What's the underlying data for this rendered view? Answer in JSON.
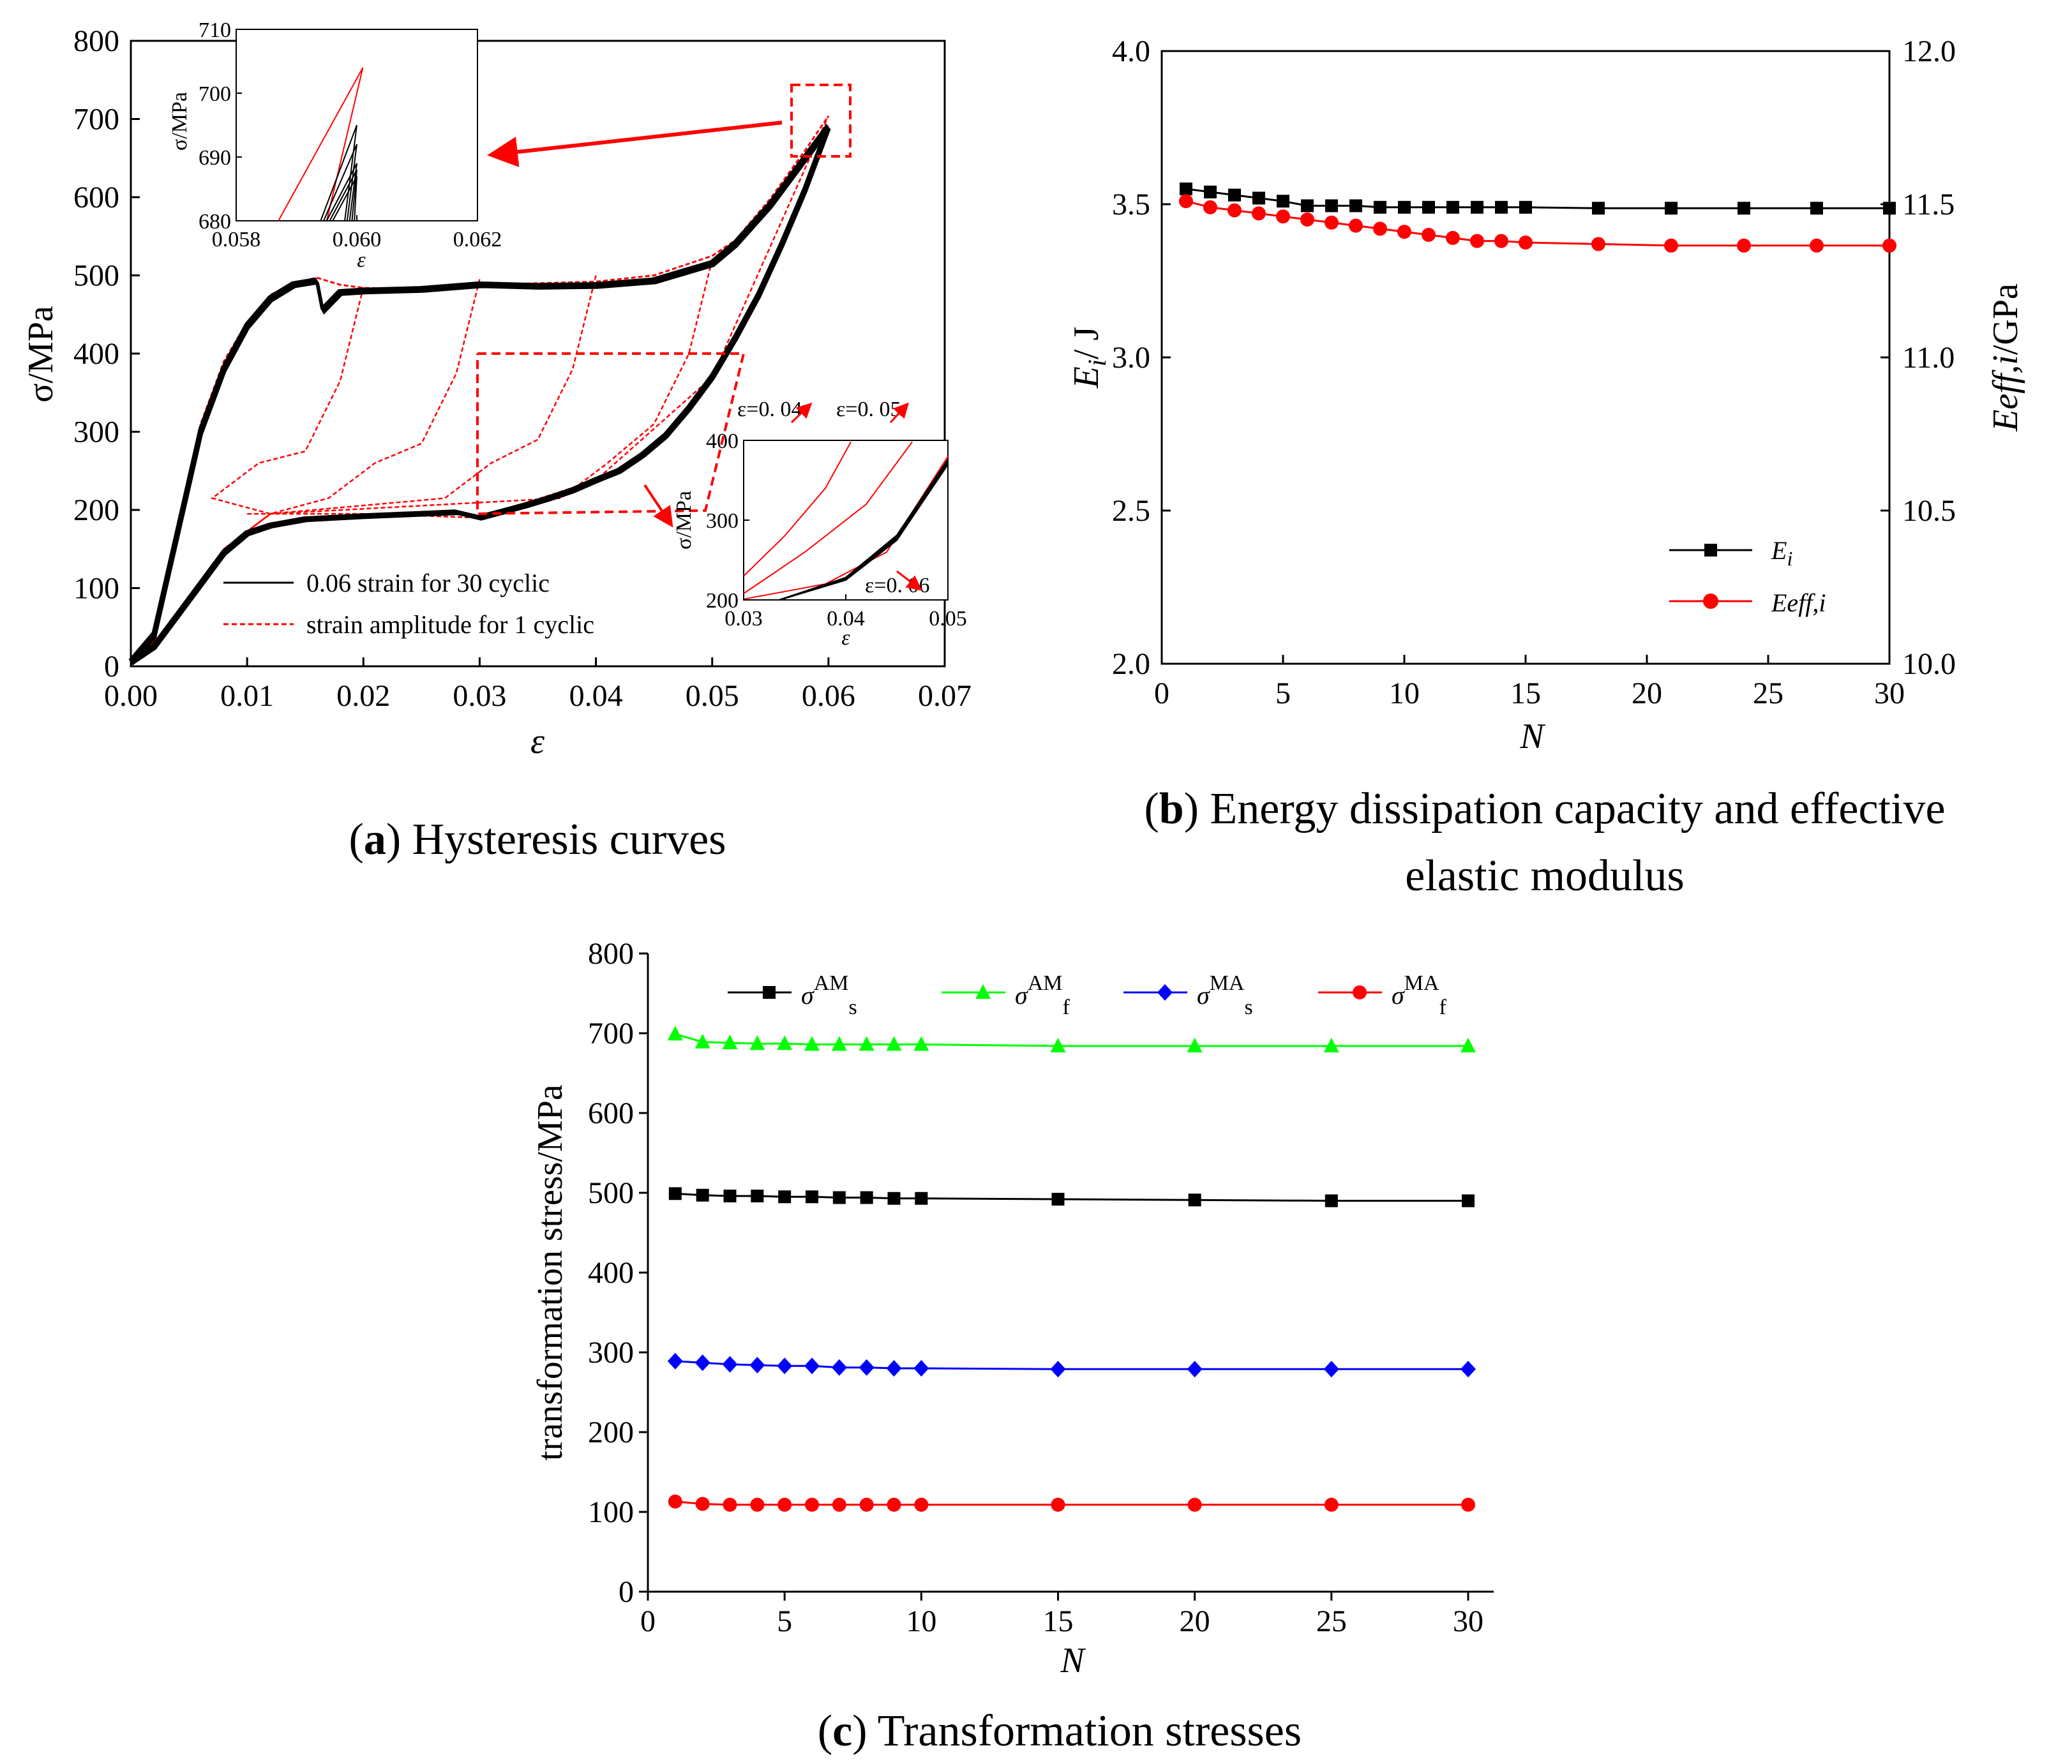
{
  "colors": {
    "black": "#000000",
    "red": "#ff0000",
    "green": "#00ff00",
    "blue": "#0000ff"
  },
  "panel_a": {
    "caption_label": "a",
    "caption_text": "Hysteresis curves",
    "ylabel": "σ/MPa",
    "xlabel": "ε",
    "x_ticks": [
      "0.00",
      "0.01",
      "0.02",
      "0.03",
      "0.04",
      "0.05",
      "0.06",
      "0.07"
    ],
    "y_ticks": [
      "0",
      "100",
      "200",
      "300",
      "400",
      "500",
      "600",
      "700",
      "800"
    ],
    "legend": [
      "0.06 strain for 30 cyclic",
      "strain amplitude for 1 cyclic"
    ],
    "inset_top": {
      "x_ticks": [
        "0.058",
        "0.060",
        "0.062"
      ],
      "y_ticks": [
        "680",
        "690",
        "700",
        "710"
      ],
      "ylabel": "σ/MPa",
      "xlabel": "ε"
    },
    "inset_bottom": {
      "x_ticks": [
        "0.03",
        "0.04",
        "0.05"
      ],
      "y_ticks": [
        "200",
        "300",
        "400"
      ],
      "ylabel": "σ/MPa",
      "xlabel": "ε",
      "annotations": [
        "ε=0. 04",
        "ε=0. 05",
        "ε=0. 06"
      ]
    }
  },
  "panel_b": {
    "caption_label": "b",
    "caption_line1": "Energy dissipation capacity and effective",
    "caption_line2": "elastic modulus",
    "xlabel": "N",
    "ylabel_left_main": "E",
    "ylabel_left_sub": "i",
    "ylabel_left_rest": "/ J",
    "ylabel_right_main": "Eeff,i",
    "ylabel_right_rest": "/GPa",
    "x_ticks": [
      "0",
      "5",
      "10",
      "15",
      "20",
      "25",
      "30"
    ],
    "y_left_ticks": [
      "2.0",
      "2.5",
      "3.0",
      "3.5",
      "4.0"
    ],
    "y_right_ticks": [
      "10.0",
      "10.5",
      "11.0",
      "11.5",
      "12.0"
    ],
    "legend_ei_main": "E",
    "legend_ei_sub": "i",
    "legend_eeff": "Eeff,i"
  },
  "panel_c": {
    "caption_label": "c",
    "caption_text": "Transformation stresses",
    "xlabel": "N",
    "ylabel": "transformation stress/MPa",
    "x_ticks": [
      "0",
      "5",
      "10",
      "15",
      "20",
      "25",
      "30"
    ],
    "y_ticks": [
      "0",
      "100",
      "200",
      "300",
      "400",
      "500",
      "600",
      "700",
      "800"
    ],
    "legend": [
      {
        "sym": "σ",
        "sup": "AM",
        "sub": "s"
      },
      {
        "sym": "σ",
        "sup": "AM",
        "sub": "f"
      },
      {
        "sym": "σ",
        "sup": "MA",
        "sub": "s"
      },
      {
        "sym": "σ",
        "sup": "MA",
        "sub": "f"
      }
    ]
  },
  "chart_data": [
    {
      "type": "line",
      "id": "hysteresis",
      "title": "Hysteresis curves",
      "xlabel": "ε",
      "ylabel": "σ/MPa",
      "xlim": [
        0,
        0.07
      ],
      "ylim": [
        0,
        800
      ],
      "series": [
        {
          "name": "0.06 strain for 30 cyclic",
          "loading_x": [
            0,
            0.002,
            0.004,
            0.006,
            0.008,
            0.01,
            0.012,
            0.014,
            0.016,
            0.0165,
            0.018,
            0.02,
            0.025,
            0.03,
            0.035,
            0.04,
            0.045,
            0.05,
            0.052,
            0.055,
            0.058,
            0.06
          ],
          "loading_y": [
            5,
            40,
            170,
            300,
            380,
            435,
            470,
            488,
            493,
            455,
            478,
            480,
            482,
            488,
            486,
            487,
            493,
            515,
            540,
            590,
            650,
            690
          ],
          "unloading_x": [
            0.06,
            0.058,
            0.056,
            0.054,
            0.052,
            0.05,
            0.048,
            0.046,
            0.044,
            0.042,
            0.04,
            0.038,
            0.036,
            0.034,
            0.032,
            0.03,
            0.028,
            0.025,
            0.02,
            0.015,
            0.012,
            0.01,
            0.008,
            0.006,
            0.004,
            0.002,
            0.0
          ],
          "unloading_y": [
            690,
            610,
            540,
            475,
            420,
            370,
            330,
            295,
            270,
            250,
            238,
            225,
            215,
            206,
            198,
            190,
            197,
            195,
            192,
            188,
            180,
            170,
            145,
            105,
            65,
            25,
            5
          ]
        },
        {
          "name": "strain amplitude for 1 cyclic",
          "loading_x": [
            0,
            0.002,
            0.004,
            0.006,
            0.008,
            0.01,
            0.012,
            0.014,
            0.016,
            0.018,
            0.02,
            0.025,
            0.03,
            0.035,
            0.04,
            0.045,
            0.05,
            0.052,
            0.055,
            0.058,
            0.06
          ],
          "loading_y": [
            5,
            45,
            180,
            310,
            390,
            440,
            475,
            490,
            497,
            488,
            484,
            482,
            488,
            490,
            492,
            500,
            525,
            545,
            598,
            660,
            704
          ],
          "unloading_peaks_x": [
            0.02,
            0.03,
            0.04,
            0.05
          ],
          "unloading_peaks_y": [
            485,
            495,
            500,
            520
          ],
          "lower_plateau_y": 195
        }
      ],
      "insets": [
        {
          "xlim": [
            0.058,
            0.062
          ],
          "ylim": [
            680,
            710
          ]
        },
        {
          "xlim": [
            0.03,
            0.05
          ],
          "ylim": [
            200,
            400
          ]
        }
      ]
    },
    {
      "type": "line",
      "id": "energy",
      "title": "Energy dissipation capacity and effective elastic modulus",
      "xlabel": "N",
      "xlim": [
        0,
        30
      ],
      "ylim_left": [
        2.0,
        4.0
      ],
      "ylim_right": [
        10.0,
        12.0
      ],
      "series": [
        {
          "name": "Ei",
          "axis": "left",
          "x": [
            1,
            2,
            3,
            4,
            5,
            6,
            7,
            8,
            9,
            10,
            11,
            12,
            13,
            14,
            15,
            18,
            21,
            24,
            27,
            30
          ],
          "y": [
            3.55,
            3.54,
            3.53,
            3.52,
            3.51,
            3.495,
            3.495,
            3.495,
            3.49,
            3.49,
            3.49,
            3.49,
            3.49,
            3.49,
            3.49,
            3.487,
            3.487,
            3.487,
            3.487,
            3.487
          ]
        },
        {
          "name": "Eeff,i",
          "axis": "right",
          "x": [
            1,
            2,
            3,
            4,
            5,
            6,
            7,
            8,
            9,
            10,
            11,
            12,
            13,
            14,
            15,
            18,
            21,
            24,
            27,
            30
          ],
          "y": [
            11.51,
            11.49,
            11.48,
            11.47,
            11.46,
            11.45,
            11.44,
            11.43,
            11.42,
            11.41,
            11.4,
            11.39,
            11.38,
            11.38,
            11.375,
            11.37,
            11.365,
            11.365,
            11.365,
            11.365
          ]
        }
      ]
    },
    {
      "type": "line",
      "id": "transformation",
      "title": "Transformation stresses",
      "xlabel": "N",
      "ylabel": "transformation stress/MPa",
      "xlim": [
        0,
        30
      ],
      "ylim": [
        0,
        800
      ],
      "x": [
        1,
        2,
        3,
        4,
        5,
        6,
        7,
        8,
        9,
        10,
        15,
        20,
        25,
        30
      ],
      "series": [
        {
          "name": "σAM s",
          "values": [
            499,
            497,
            496,
            496,
            495,
            495,
            494,
            494,
            493,
            493,
            492,
            491,
            490,
            490
          ]
        },
        {
          "name": "σAM f",
          "values": [
            699,
            689,
            688,
            687,
            687,
            686,
            686,
            686,
            686,
            686,
            684,
            684,
            684,
            684
          ]
        },
        {
          "name": "σMA s",
          "values": [
            289,
            287,
            285,
            284,
            283,
            283,
            281,
            281,
            280,
            280,
            279,
            279,
            279,
            279
          ]
        },
        {
          "name": "σMA f",
          "values": [
            113,
            110,
            109,
            109,
            109,
            109,
            109,
            109,
            109,
            109,
            109,
            109,
            109,
            109
          ]
        }
      ]
    }
  ]
}
